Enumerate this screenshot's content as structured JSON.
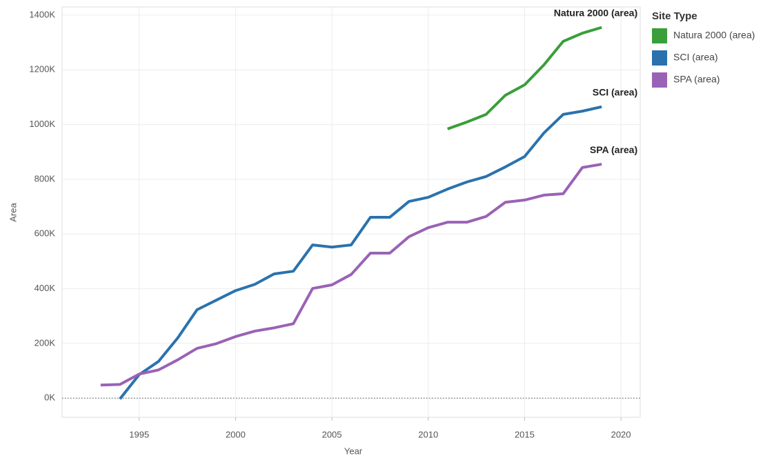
{
  "chart_data": {
    "type": "line",
    "x_label": "Year",
    "y_label": "Area",
    "legend_title": "Site Type",
    "x": [
      1993,
      1994,
      1995,
      1996,
      1997,
      1998,
      1999,
      2000,
      2001,
      2002,
      2003,
      2004,
      2005,
      2006,
      2007,
      2008,
      2009,
      2010,
      2011,
      2012,
      2013,
      2014,
      2015,
      2016,
      2017,
      2018,
      2019
    ],
    "series": [
      {
        "name": "Natura 2000 (area)",
        "color": "#3a9e3a",
        "values": [
          null,
          null,
          null,
          null,
          null,
          null,
          null,
          null,
          null,
          null,
          null,
          null,
          null,
          null,
          null,
          null,
          null,
          null,
          984000,
          1009000,
          1037000,
          1107000,
          1145000,
          1218000,
          1304000,
          1334000,
          1355000
        ]
      },
      {
        "name": "SCI (area)",
        "color": "#2a72ae",
        "values": [
          null,
          -3000,
          86000,
          134000,
          220000,
          323000,
          358000,
          393000,
          416000,
          454000,
          464000,
          560000,
          552000,
          560000,
          661000,
          661000,
          719000,
          734000,
          764000,
          790000,
          810000,
          845000,
          883000,
          969000,
          1037000,
          1049000,
          1065000
        ]
      },
      {
        "name": "SPA (area)",
        "color": "#9a62b6",
        "values": [
          48000,
          50000,
          88000,
          103000,
          140000,
          182000,
          199000,
          225000,
          245000,
          257000,
          272000,
          401000,
          414000,
          452000,
          530000,
          530000,
          590000,
          623000,
          643000,
          643000,
          664000,
          716000,
          724000,
          742000,
          747000,
          843000,
          855000
        ]
      }
    ],
    "xlim": [
      1991,
      2021
    ],
    "xticks": [
      1995,
      2000,
      2005,
      2010,
      2015,
      2020
    ],
    "ylim": [
      -70000,
      1430000
    ],
    "yticks": [
      {
        "value": 0,
        "label": "0K"
      },
      {
        "value": 200000,
        "label": "200K"
      },
      {
        "value": 400000,
        "label": "400K"
      },
      {
        "value": 600000,
        "label": "600K"
      },
      {
        "value": 800000,
        "label": "800K"
      },
      {
        "value": 1000000,
        "label": "1000K"
      },
      {
        "value": 1200000,
        "label": "1200K"
      },
      {
        "value": 1400000,
        "label": "1400K"
      }
    ],
    "grid": true,
    "legend": "right"
  }
}
